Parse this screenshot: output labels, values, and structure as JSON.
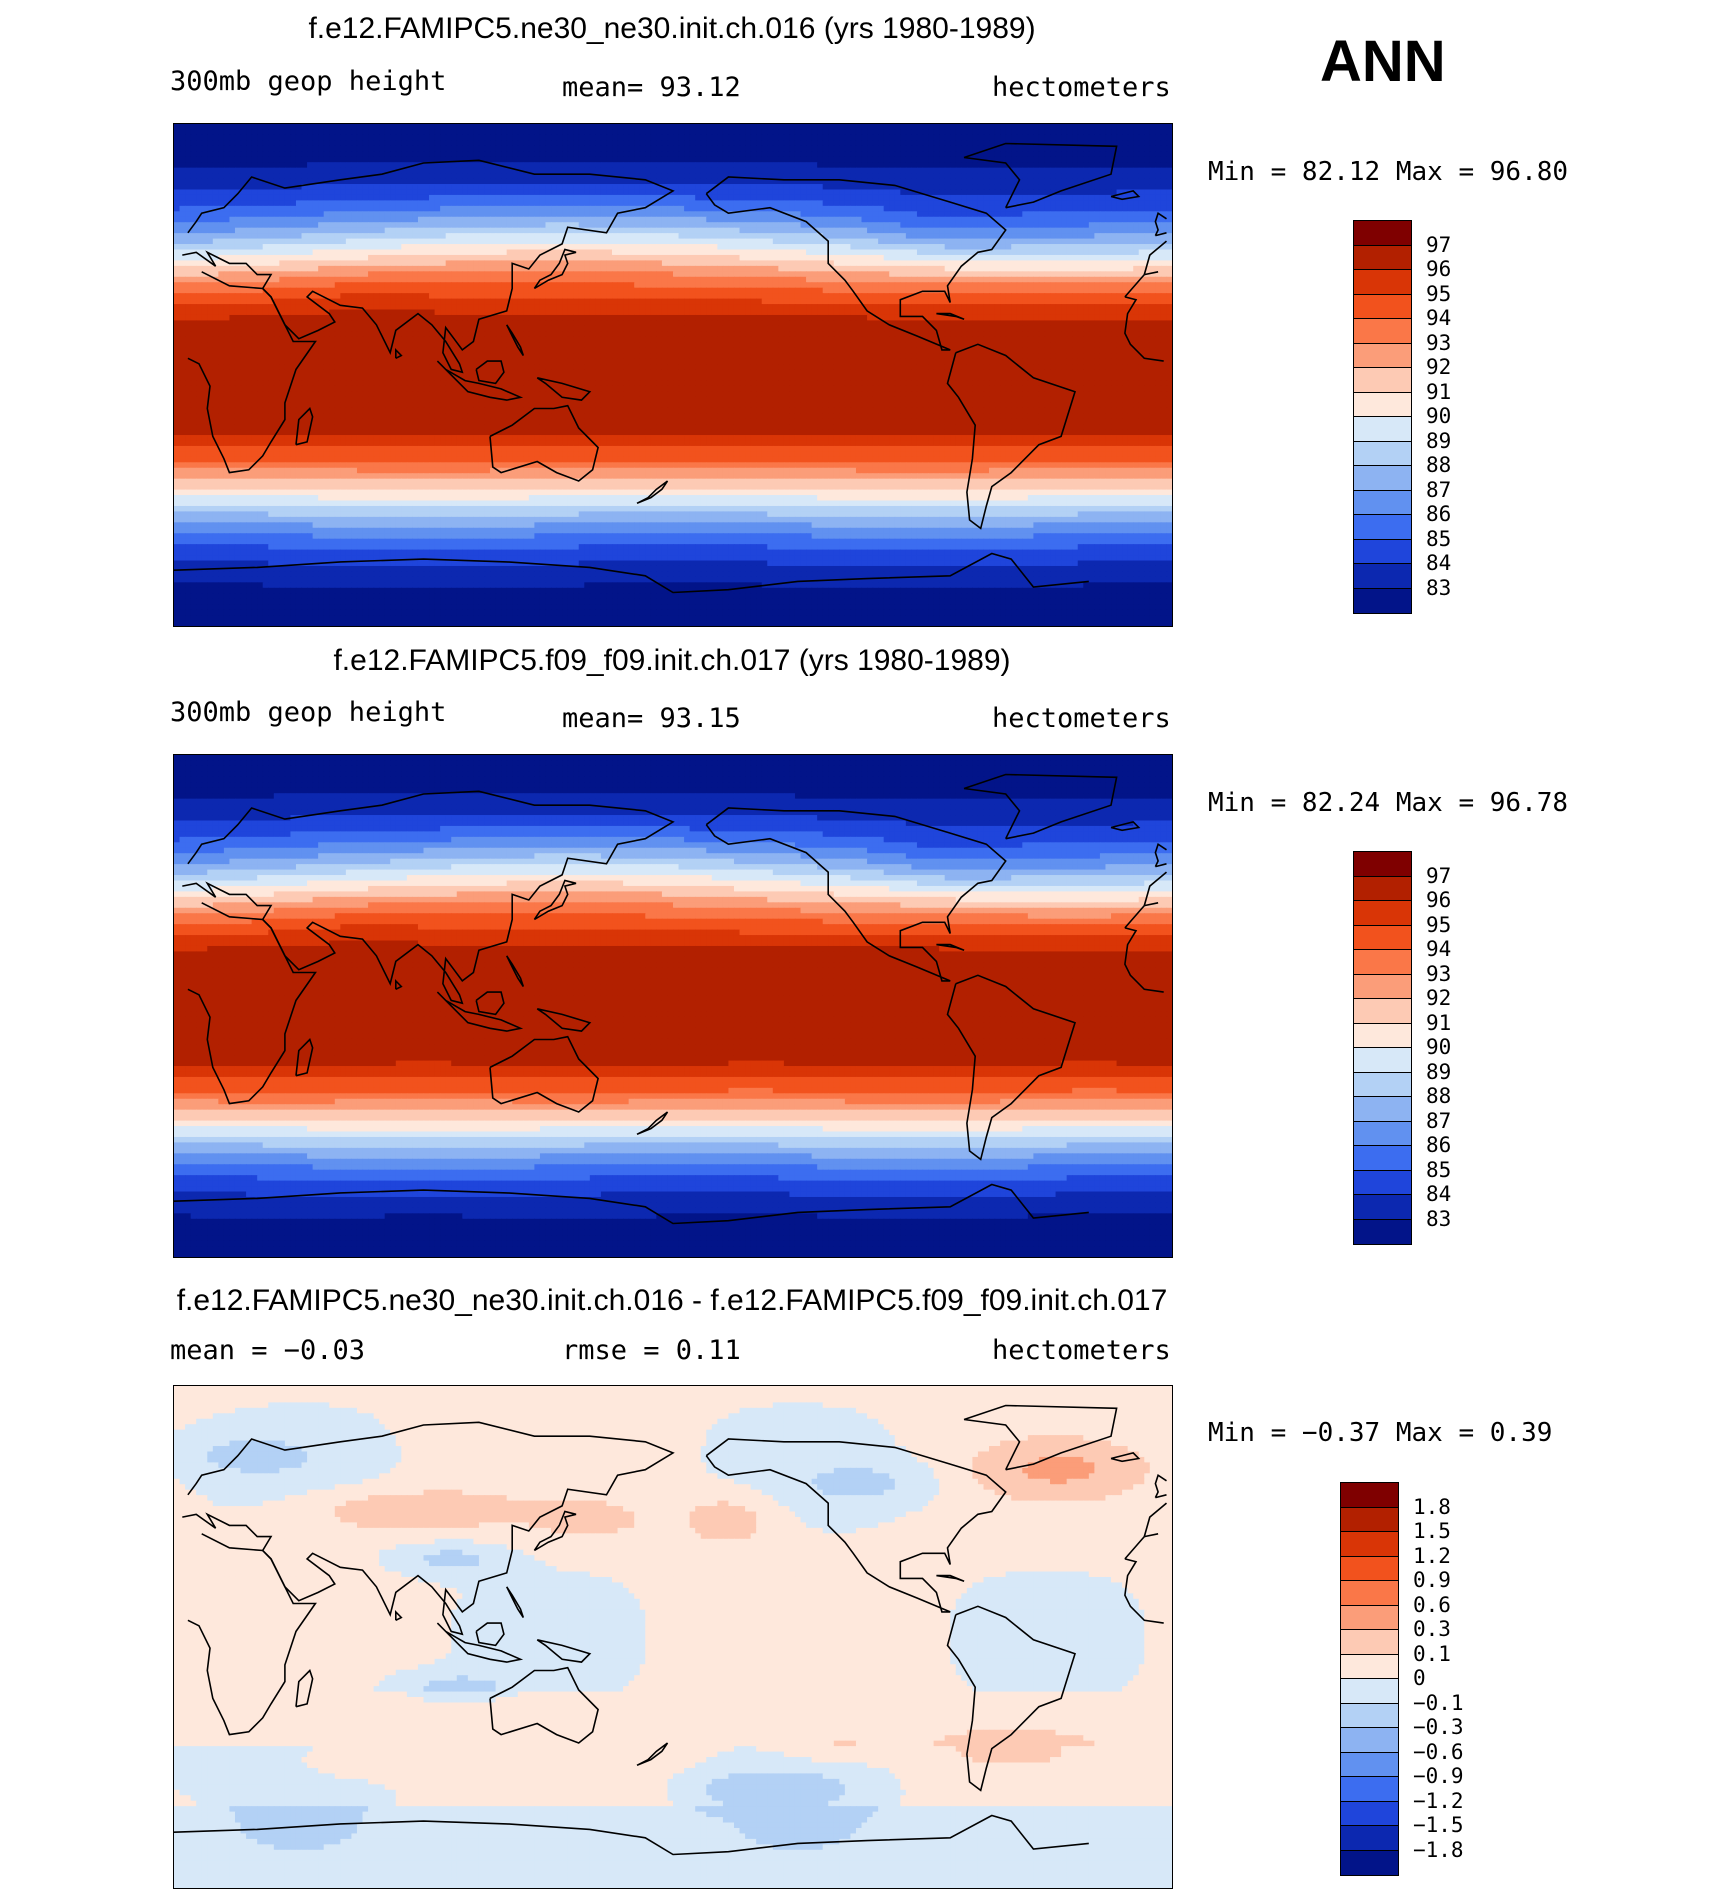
{
  "season": "ANN",
  "panels": [
    {
      "title": "f.e12.FAMIPC5.ne30_ne30.init.ch.016 (yrs 1980-1989)",
      "variable": "300mb geop height",
      "stat": "mean=   93.12",
      "units": "hectometers",
      "minmax": "Min =   82.12 Max =   96.80",
      "colorbar": {
        "labels": [
          "97",
          "96",
          "95",
          "94",
          "93",
          "92",
          "91",
          "90",
          "89",
          "88",
          "87",
          "86",
          "85",
          "84",
          "83"
        ],
        "colors": [
          "#7f0000",
          "#b22000",
          "#d93506",
          "#f2521d",
          "#fa7748",
          "#fb9d79",
          "#fdcab4",
          "#fee8dc",
          "#d7e8f8",
          "#b3d1f5",
          "#8db3f2",
          "#6191f0",
          "#3c6df0",
          "#1f45db",
          "#0c28b0",
          "#021489"
        ]
      },
      "map_fields": "geopotential"
    },
    {
      "title": "f.e12.FAMIPC5.f09_f09.init.ch.017 (yrs 1980-1989)",
      "variable": "300mb geop height",
      "stat": "mean=   93.15",
      "units": "hectometers",
      "minmax": "Min =   82.24 Max =   96.78",
      "colorbar": {
        "labels": [
          "97",
          "96",
          "95",
          "94",
          "93",
          "92",
          "91",
          "90",
          "89",
          "88",
          "87",
          "86",
          "85",
          "84",
          "83"
        ],
        "colors": [
          "#7f0000",
          "#b22000",
          "#d93506",
          "#f2521d",
          "#fa7748",
          "#fb9d79",
          "#fdcab4",
          "#fee8dc",
          "#d7e8f8",
          "#b3d1f5",
          "#8db3f2",
          "#6191f0",
          "#3c6df0",
          "#1f45db",
          "#0c28b0",
          "#021489"
        ]
      },
      "map_fields": "geopotential"
    },
    {
      "title": "f.e12.FAMIPC5.ne30_ne30.init.ch.016 - f.e12.FAMIPC5.f09_f09.init.ch.017",
      "stat": "mean =   −0.03",
      "rmse": "rmse =    0.11",
      "units": "hectometers",
      "minmax": "Min =  −0.37 Max =    0.39",
      "colorbar": {
        "labels": [
          "1.8",
          "1.5",
          "1.2",
          "0.9",
          "0.6",
          "0.3",
          "0.1",
          "0",
          "−0.1",
          "−0.3",
          "−0.6",
          "−0.9",
          "−1.2",
          "−1.5",
          "−1.8"
        ],
        "colors": [
          "#7f0000",
          "#b22000",
          "#d93506",
          "#f2521d",
          "#fa7748",
          "#fb9d79",
          "#fdcab4",
          "#fee8dc",
          "#d7e8f8",
          "#b3d1f5",
          "#8db3f2",
          "#6191f0",
          "#3c6df0",
          "#1f45db",
          "#0c28b0",
          "#021489"
        ]
      },
      "map_fields": "difference"
    }
  ]
}
